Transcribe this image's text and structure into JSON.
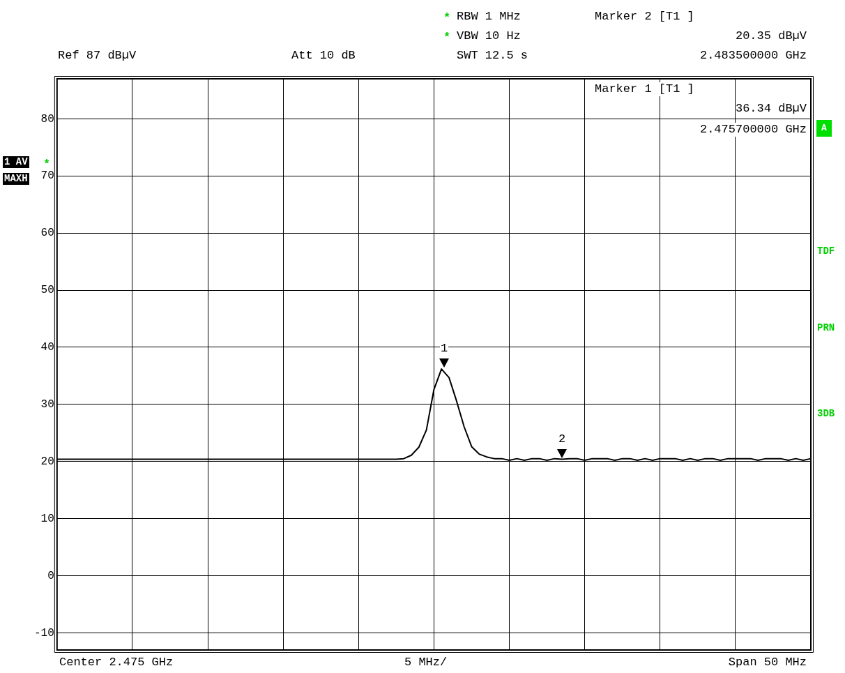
{
  "chart_data": {
    "type": "line",
    "ylim": [
      -13,
      87
    ],
    "categories": [
      null,
      null,
      null,
      null,
      null,
      null,
      null,
      null,
      null,
      null,
      null,
      null,
      null,
      null,
      null,
      null,
      null,
      null,
      null,
      null,
      null,
      null,
      null,
      null,
      null,
      null,
      null,
      null,
      null,
      null,
      null,
      null,
      null,
      null,
      null,
      null,
      null,
      null,
      null,
      null,
      null,
      null,
      null,
      null,
      null,
      null,
      null,
      null,
      null,
      null,
      null,
      null,
      null,
      null,
      null,
      null,
      null,
      null,
      null,
      null,
      null,
      null,
      null,
      null,
      null,
      null,
      null,
      null,
      null,
      null,
      null,
      null,
      null,
      null,
      null,
      null,
      null,
      null,
      null,
      null,
      null,
      null,
      null,
      null,
      null,
      null,
      null,
      null,
      null,
      null,
      null,
      null,
      null,
      null,
      null,
      null,
      null,
      null,
      null,
      null,
      null
    ],
    "yticks": [
      -10,
      0,
      10,
      20,
      30,
      40,
      50,
      60,
      70,
      80
    ],
    "tick_labels": "y",
    "grid": true,
    "legend": false,
    "marker": "none",
    "line_style": "solid",
    "series": [
      {
        "color": "#000000",
        "values": [
          20.4,
          20.4,
          20.4,
          20.4,
          20.4,
          20.4,
          20.4,
          20.4,
          20.4,
          20.4,
          20.4,
          20.4,
          20.4,
          20.4,
          20.4,
          20.4,
          20.4,
          20.4,
          20.4,
          20.4,
          20.4,
          20.4,
          20.4,
          20.4,
          20.4,
          20.4,
          20.4,
          20.4,
          20.4,
          20.4,
          20.4,
          20.4,
          20.4,
          20.4,
          20.4,
          20.4,
          20.4,
          20.4,
          20.4,
          20.4,
          20.4,
          20.4,
          20.4,
          20.4,
          20.4,
          20.4,
          20.5,
          21.1,
          22.5,
          25.5,
          32.6,
          36.2,
          34.7,
          30.6,
          26.1,
          22.6,
          21.3,
          20.8,
          20.5,
          20.5,
          20.2,
          20.5,
          20.2,
          20.5,
          20.5,
          20.2,
          20.5,
          20.4,
          20.5,
          20.5,
          20.2,
          20.5,
          20.5,
          20.5,
          20.2,
          20.5,
          20.5,
          20.2,
          20.5,
          20.2,
          20.5,
          20.5,
          20.5,
          20.2,
          20.5,
          20.2,
          20.5,
          20.5,
          20.2,
          20.5,
          20.5,
          20.5,
          20.5,
          20.2,
          20.5,
          20.5,
          20.5,
          20.2,
          20.5,
          20.2,
          20.5
        ]
      }
    ],
    "annotations": [
      "*",
      "RBW 1 MHz",
      "*",
      "VBW 10 Hz",
      "SWT 12.5 s",
      "Marker 2 [T1 ]",
      "20.35 dBµV",
      "2.483500000 GHz",
      "Ref 87 dBµV",
      "Att 10 dB",
      "Marker 1 [T1 ]",
      "36.34 dBµV",
      "2.475700000 GHz",
      "1 AV",
      "*",
      "MAXH",
      "A",
      "TDF",
      "PRN",
      "3DB",
      "Center 2.475 GHz",
      "5 MHz/",
      "Span 50 MHz",
      "1",
      "2"
    ]
  }
}
